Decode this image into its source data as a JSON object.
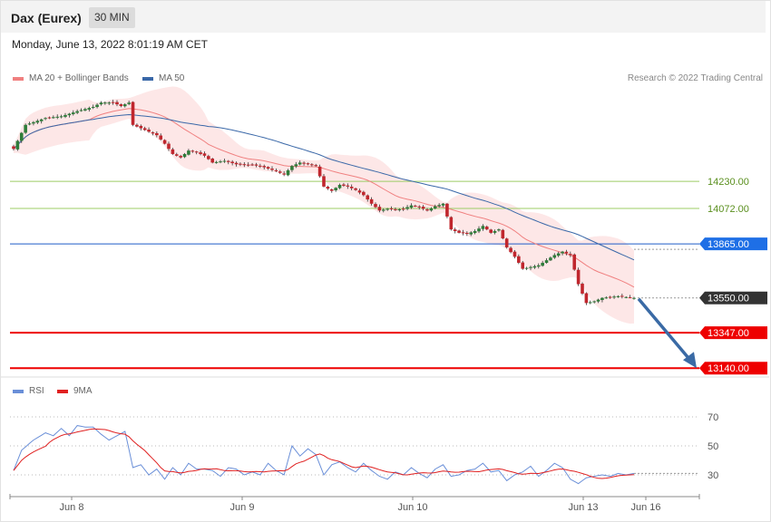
{
  "header": {
    "instrument": "Dax (Eurex)",
    "timeframe": "30 MIN",
    "datetime": "Monday, June 13, 2022 8:01:19 AM CET"
  },
  "legend": {
    "ma20_label": "MA 20 + Bollinger Bands",
    "ma50_label": "MA 50",
    "credit": "Research © 2022 Trading Central"
  },
  "rsi_legend": {
    "rsi_label": "RSI",
    "ma9_label": "9MA"
  },
  "colors": {
    "ma20": "#f08080",
    "bands": "#fde3e3",
    "ma50": "#3a68a8",
    "candle_up": "#2f7d3a",
    "candle_down": "#c0262d",
    "level_green": "#9ccc65",
    "level_blue": "#1f5cc8",
    "level_red": "#ee0000",
    "current": "#333333",
    "arrow": "#3a6aa5",
    "rsi": "#6a8fd8",
    "rsi_ma": "#e02020"
  },
  "chart_data": [
    {
      "type": "candlestick",
      "title": "Dax (Eurex)",
      "ylim": [
        13120,
        14760
      ],
      "x_ticks": [
        "Jun 8",
        "Jun 9",
        "Jun 10",
        "Jun 13",
        "Jun 16"
      ],
      "levels": [
        {
          "value": 14230,
          "label": "14230.00",
          "kind": "resistance-green"
        },
        {
          "value": 14072,
          "label": "14072.00",
          "kind": "resistance-green"
        },
        {
          "value": 13865,
          "label": "13865.00",
          "kind": "pivot"
        },
        {
          "value": 13550,
          "label": "13550.00",
          "kind": "current"
        },
        {
          "value": 13347,
          "label": "13347.00",
          "kind": "support"
        },
        {
          "value": 13140,
          "label": "13140.00",
          "kind": "support"
        }
      ],
      "close_anchors": [
        [
          0,
          14420
        ],
        [
          3,
          14560
        ],
        [
          8,
          14600
        ],
        [
          12,
          14610
        ],
        [
          16,
          14640
        ],
        [
          20,
          14665
        ],
        [
          22,
          14690
        ],
        [
          25,
          14690
        ],
        [
          27,
          14670
        ],
        [
          29,
          14690
        ],
        [
          30,
          14560
        ],
        [
          33,
          14530
        ],
        [
          36,
          14500
        ],
        [
          38,
          14450
        ],
        [
          40,
          14390
        ],
        [
          42,
          14370
        ],
        [
          44,
          14410
        ],
        [
          46,
          14400
        ],
        [
          48,
          14380
        ],
        [
          50,
          14340
        ],
        [
          53,
          14350
        ],
        [
          56,
          14330
        ],
        [
          60,
          14325
        ],
        [
          62,
          14320
        ],
        [
          64,
          14305
        ],
        [
          66,
          14290
        ],
        [
          68,
          14270
        ],
        [
          70,
          14320
        ],
        [
          72,
          14340
        ],
        [
          74,
          14330
        ],
        [
          76,
          14320
        ],
        [
          78,
          14200
        ],
        [
          80,
          14175
        ],
        [
          82,
          14210
        ],
        [
          84,
          14200
        ],
        [
          86,
          14180
        ],
        [
          88,
          14150
        ],
        [
          90,
          14100
        ],
        [
          92,
          14060
        ],
        [
          94,
          14070
        ],
        [
          96,
          14065
        ],
        [
          98,
          14070
        ],
        [
          100,
          14090
        ],
        [
          102,
          14080
        ],
        [
          104,
          14060
        ],
        [
          106,
          14085
        ],
        [
          108,
          14100
        ],
        [
          110,
          13950
        ],
        [
          112,
          13930
        ],
        [
          114,
          13925
        ],
        [
          116,
          13940
        ],
        [
          118,
          13970
        ],
        [
          120,
          13930
        ],
        [
          122,
          13950
        ],
        [
          124,
          13845
        ],
        [
          126,
          13790
        ],
        [
          128,
          13720
        ],
        [
          130,
          13730
        ],
        [
          132,
          13740
        ],
        [
          134,
          13770
        ],
        [
          136,
          13800
        ],
        [
          138,
          13820
        ],
        [
          140,
          13800
        ],
        [
          142,
          13630
        ],
        [
          144,
          13520
        ],
        [
          146,
          13530
        ],
        [
          148,
          13550
        ],
        [
          150,
          13555
        ],
        [
          152,
          13560
        ],
        [
          154,
          13555
        ],
        [
          156,
          13550
        ]
      ],
      "series": [
        {
          "name": "MA 20 + Bollinger Bands"
        },
        {
          "name": "MA 50"
        }
      ]
    },
    {
      "type": "line",
      "ylim": [
        20,
        80
      ],
      "y_ticks": [
        70,
        50,
        30
      ],
      "rsi_anchors": [
        [
          0,
          33
        ],
        [
          2,
          47
        ],
        [
          5,
          54
        ],
        [
          8,
          59
        ],
        [
          10,
          57
        ],
        [
          12,
          62
        ],
        [
          14,
          57
        ],
        [
          16,
          64
        ],
        [
          18,
          63
        ],
        [
          20,
          63
        ],
        [
          22,
          58
        ],
        [
          24,
          54
        ],
        [
          26,
          57
        ],
        [
          28,
          60
        ],
        [
          30,
          35
        ],
        [
          32,
          37
        ],
        [
          34,
          30
        ],
        [
          36,
          34
        ],
        [
          38,
          27
        ],
        [
          40,
          35
        ],
        [
          42,
          30
        ],
        [
          44,
          38
        ],
        [
          46,
          34
        ],
        [
          48,
          34
        ],
        [
          50,
          33
        ],
        [
          52,
          29
        ],
        [
          54,
          35
        ],
        [
          56,
          34
        ],
        [
          58,
          30
        ],
        [
          60,
          32
        ],
        [
          62,
          30
        ],
        [
          64,
          38
        ],
        [
          66,
          33
        ],
        [
          68,
          30
        ],
        [
          70,
          50
        ],
        [
          72,
          43
        ],
        [
          74,
          48
        ],
        [
          76,
          44
        ],
        [
          78,
          30
        ],
        [
          80,
          37
        ],
        [
          82,
          39
        ],
        [
          84,
          35
        ],
        [
          86,
          32
        ],
        [
          88,
          38
        ],
        [
          90,
          33
        ],
        [
          92,
          29
        ],
        [
          94,
          27
        ],
        [
          96,
          32
        ],
        [
          98,
          30
        ],
        [
          100,
          35
        ],
        [
          102,
          31
        ],
        [
          104,
          28
        ],
        [
          106,
          34
        ],
        [
          108,
          37
        ],
        [
          110,
          29
        ],
        [
          112,
          30
        ],
        [
          114,
          33
        ],
        [
          116,
          34
        ],
        [
          118,
          38
        ],
        [
          120,
          32
        ],
        [
          122,
          33
        ],
        [
          124,
          26
        ],
        [
          126,
          30
        ],
        [
          128,
          32
        ],
        [
          130,
          36
        ],
        [
          132,
          29
        ],
        [
          134,
          33
        ],
        [
          136,
          38
        ],
        [
          138,
          35
        ],
        [
          140,
          27
        ],
        [
          142,
          24
        ],
        [
          144,
          28
        ],
        [
          146,
          29
        ],
        [
          148,
          30
        ],
        [
          150,
          29
        ],
        [
          152,
          31
        ],
        [
          154,
          30
        ],
        [
          156,
          31
        ]
      ],
      "series": [
        {
          "name": "RSI"
        },
        {
          "name": "9MA"
        }
      ]
    }
  ]
}
